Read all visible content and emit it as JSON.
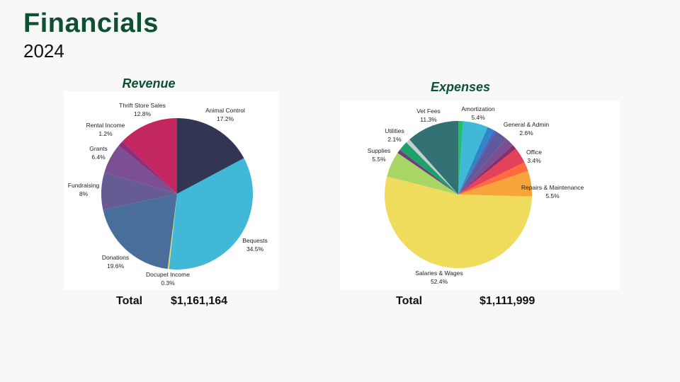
{
  "page": {
    "title": "Financials",
    "year": "2024"
  },
  "chart_data": [
    {
      "type": "pie",
      "title": "Revenue",
      "total_label": "Total",
      "total_value": "$1,161,164",
      "slices": [
        {
          "name": "Animal Control",
          "pct_label": "17.2%",
          "value": 17.2,
          "color": "#333652"
        },
        {
          "name": "Bequests",
          "pct_label": "34.5%",
          "value": 34.5,
          "color": "#42b8d8"
        },
        {
          "name": "Docupet Income",
          "pct_label": "0.3%",
          "value": 0.3,
          "color": "#e6d96a"
        },
        {
          "name": "Donations",
          "pct_label": "19.6%",
          "value": 19.6,
          "color": "#4a6e9c"
        },
        {
          "name": "Fundraising",
          "pct_label": "8%",
          "value": 8.0,
          "color": "#675b93"
        },
        {
          "name": "Grants",
          "pct_label": "6.4%",
          "value": 6.4,
          "color": "#7b4f91"
        },
        {
          "name": "Rental Income",
          "pct_label": "1.2%",
          "value": 1.2,
          "color": "#8d2f7d"
        },
        {
          "name": "Thrift Store Sales",
          "pct_label": "12.8%",
          "value": 12.8,
          "color": "#c2275f"
        }
      ]
    },
    {
      "type": "pie",
      "title": "Expenses",
      "total_label": "Total",
      "total_value": "$1,111,999",
      "slices": [
        {
          "name": "",
          "pct_label": "",
          "value": 1.0,
          "color": "#1fc06a"
        },
        {
          "name": "Amortization",
          "pct_label": "5.4%",
          "value": 5.4,
          "color": "#40b8d8"
        },
        {
          "name": "",
          "pct_label": "",
          "value": 1.5,
          "color": "#3187c6"
        },
        {
          "name": "",
          "pct_label": "",
          "value": 0.5,
          "color": "#4a62c4"
        },
        {
          "name": "General & Admin",
          "pct_label": "2.6%",
          "value": 2.6,
          "color": "#5f5a9c"
        },
        {
          "name": "",
          "pct_label": "",
          "value": 2.0,
          "color": "#7c4f92"
        },
        {
          "name": "",
          "pct_label": "",
          "value": 1.0,
          "color": "#8a2f6c"
        },
        {
          "name": "Office",
          "pct_label": "3.4%",
          "value": 3.4,
          "color": "#e4425a"
        },
        {
          "name": "",
          "pct_label": "",
          "value": 2.0,
          "color": "#ff6b3d"
        },
        {
          "name": "Repairs & Maintenance",
          "pct_label": "5.5%",
          "value": 5.5,
          "color": "#f7a43a"
        },
        {
          "name": "Salaries & Wages",
          "pct_label": "52.4%",
          "value": 52.4,
          "color": "#efdb5c"
        },
        {
          "name": "Supplies",
          "pct_label": "5.5%",
          "value": 5.5,
          "color": "#a8d665"
        },
        {
          "name": "",
          "pct_label": "",
          "value": 0.8,
          "color": "#6c3c7c"
        },
        {
          "name": "Utilities",
          "pct_label": "2.1%",
          "value": 2.1,
          "color": "#1fa06a"
        },
        {
          "name": "",
          "pct_label": "",
          "value": 0.9,
          "color": "#c4d0d0"
        },
        {
          "name": "Vet Fees",
          "pct_label": "11.3%",
          "value": 11.3,
          "color": "#327275"
        }
      ]
    }
  ]
}
